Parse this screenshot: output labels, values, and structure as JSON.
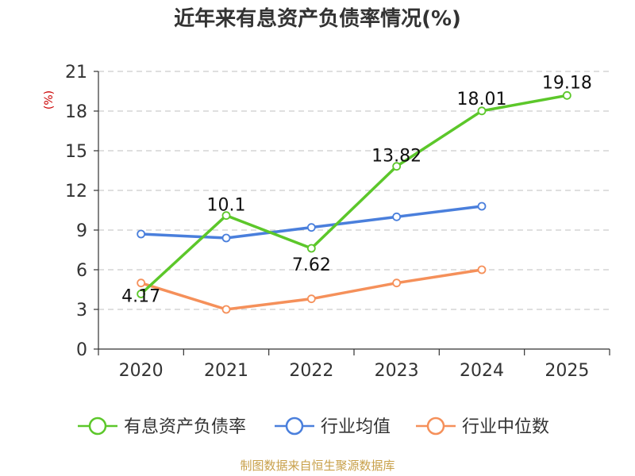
{
  "chart_data": {
    "type": "line",
    "title": "近年来有息资产负债率情况(%)",
    "ylabel": "(%)",
    "xlabel": "",
    "categories": [
      "2020",
      "2021",
      "2022",
      "2023",
      "2024",
      "2025"
    ],
    "ylim": [
      0,
      21
    ],
    "yticks": [
      0,
      3,
      6,
      9,
      12,
      15,
      18,
      21
    ],
    "grid": true,
    "legend_position": "bottom",
    "series": [
      {
        "name": "有息资产负债率",
        "color": "#5cc72a",
        "values": [
          4.17,
          10.1,
          7.62,
          13.82,
          18.01,
          19.18
        ],
        "labels": [
          "4.17",
          "10.1",
          "7.62",
          "13.82",
          "18.01",
          "19.18"
        ],
        "show_labels": true
      },
      {
        "name": "行业均值",
        "color": "#4a7fdc",
        "values": [
          8.7,
          8.4,
          9.2,
          10.0,
          10.8,
          null
        ],
        "show_labels": false
      },
      {
        "name": "行业中位数",
        "color": "#f5905a",
        "values": [
          5.0,
          3.0,
          3.8,
          5.0,
          6.0,
          null
        ],
        "show_labels": false
      }
    ],
    "source": "制图数据来自恒生聚源数据库"
  }
}
